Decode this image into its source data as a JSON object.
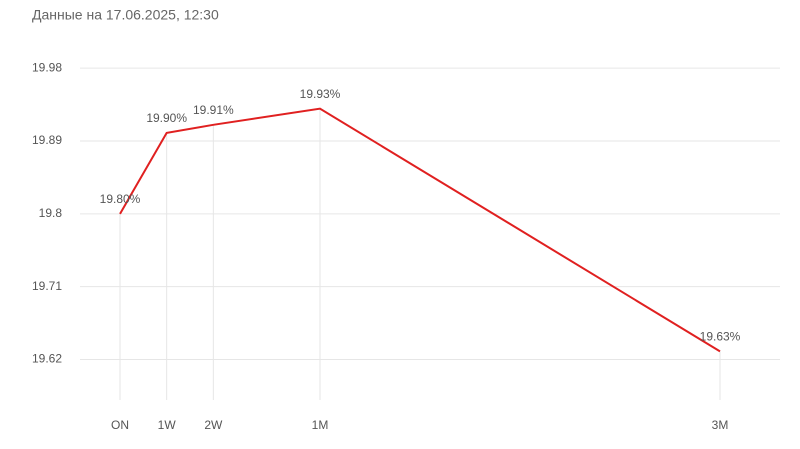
{
  "chart_data": {
    "type": "line",
    "subtitle": "Данные на 17.06.2025, 12:30",
    "x": [
      0,
      7,
      14,
      30,
      90
    ],
    "series": [
      {
        "color": "#e02020",
        "values": [
          19.8,
          19.9,
          19.91,
          19.93,
          19.63
        ],
        "value_labels": [
          "19.80%",
          "19.90%",
          "19.91%",
          "19.93%",
          "19.63%"
        ]
      }
    ],
    "xlim": [
      -6,
      99
    ],
    "xticks": [
      {
        "value": 0,
        "label": "ON"
      },
      {
        "value": 7,
        "label": "1W"
      },
      {
        "value": 14,
        "label": "2W"
      },
      {
        "value": 30,
        "label": "1M"
      },
      {
        "value": 90,
        "label": "3M"
      }
    ],
    "ylim": [
      19.56,
      20.0
    ],
    "yticks": [
      19.62,
      19.71,
      19.8,
      19.89,
      19.98
    ],
    "grid": true
  }
}
